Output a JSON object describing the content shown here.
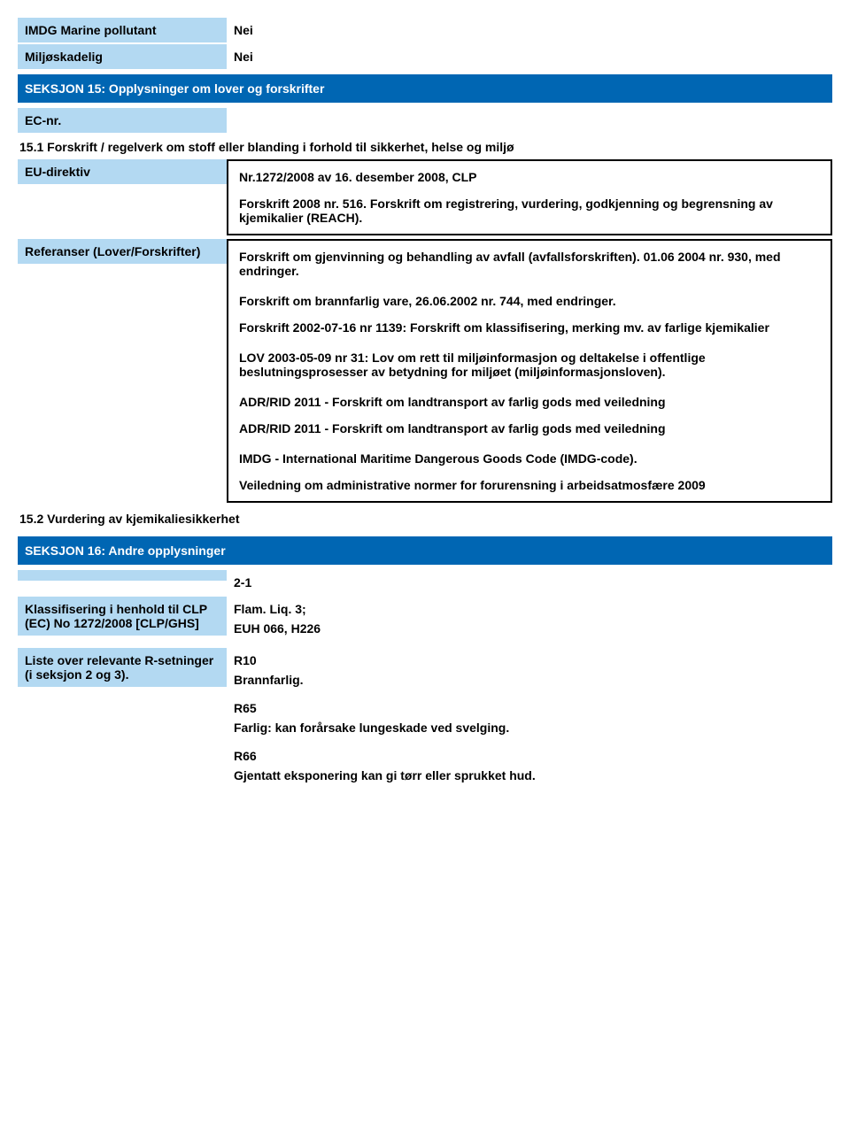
{
  "colors": {
    "header_bg": "#0066b3",
    "label_bg": "#b3d9f2",
    "text": "#000000",
    "border": "#000000"
  },
  "top": {
    "imdg_label": "IMDG Marine pollutant",
    "imdg_value": "Nei",
    "miljo_label": "Miljøskadelig",
    "miljo_value": "Nei"
  },
  "section15": {
    "header": "SEKSJON 15: Opplysninger om lover og forskrifter",
    "ec_label": "EC-nr.",
    "sub151": "15.1 Forskrift / regelverk om stoff eller blanding i forhold til sikkerhet, helse og miljø",
    "eu_label": "EU-direktiv",
    "eu_box_p1": "Nr.1272/2008 av 16. desember 2008, CLP",
    "eu_box_p2": "Forskrift 2008 nr. 516. Forskrift om registrering, vurdering, godkjenning og begrensning av kjemikalier (REACH).",
    "ref_label": "Referanser (Lover/Forskrifter)",
    "ref_p1": "Forskrift om gjenvinning og behandling av avfall (avfallsforskriften). 01.06 2004 nr. 930, med endringer.",
    "ref_p2": "Forskrift om brannfarlig vare, 26.06.2002 nr. 744, med endringer.",
    "ref_p3": "Forskrift 2002-07-16 nr 1139: Forskrift om klassifisering, merking mv. av farlige kjemikalier",
    "ref_p4": "LOV 2003-05-09 nr 31: Lov om rett til miljøinformasjon og deltakelse i offentlige beslutningsprosesser av betydning for miljøet (miljøinformasjonsloven).",
    "ref_p5": "ADR/RID 2011 - Forskrift om landtransport av farlig gods med veiledning",
    "ref_p6": "ADR/RID 2011 - Forskrift om landtransport av farlig gods med veiledning",
    "ref_p7": "IMDG - International Maritime Dangerous Goods Code (IMDG-code).",
    "ref_p8": "Veiledning om administrative normer for forurensning i arbeidsatmosfære 2009",
    "sub152": "15.2 Vurdering av kjemikaliesikkerhet"
  },
  "section16": {
    "header": "SEKSJON 16: Andre opplysninger",
    "val_2_1": "2-1",
    "klass_label": "Klassifisering i henhold til CLP (EC) No 1272/2008 [CLP/GHS]",
    "klass_v1": "Flam. Liq. 3;",
    "klass_v2": "EUH 066, H226",
    "liste_label": "Liste over relevante R-setninger (i seksjon 2 og 3).",
    "r10": "R10",
    "brann": "Brannfarlig.",
    "r65": "R65",
    "r65_text": "Farlig: kan forårsake lungeskade ved svelging.",
    "r66": "R66",
    "r66_text": "Gjentatt eksponering kan gi tørr eller sprukket hud."
  }
}
